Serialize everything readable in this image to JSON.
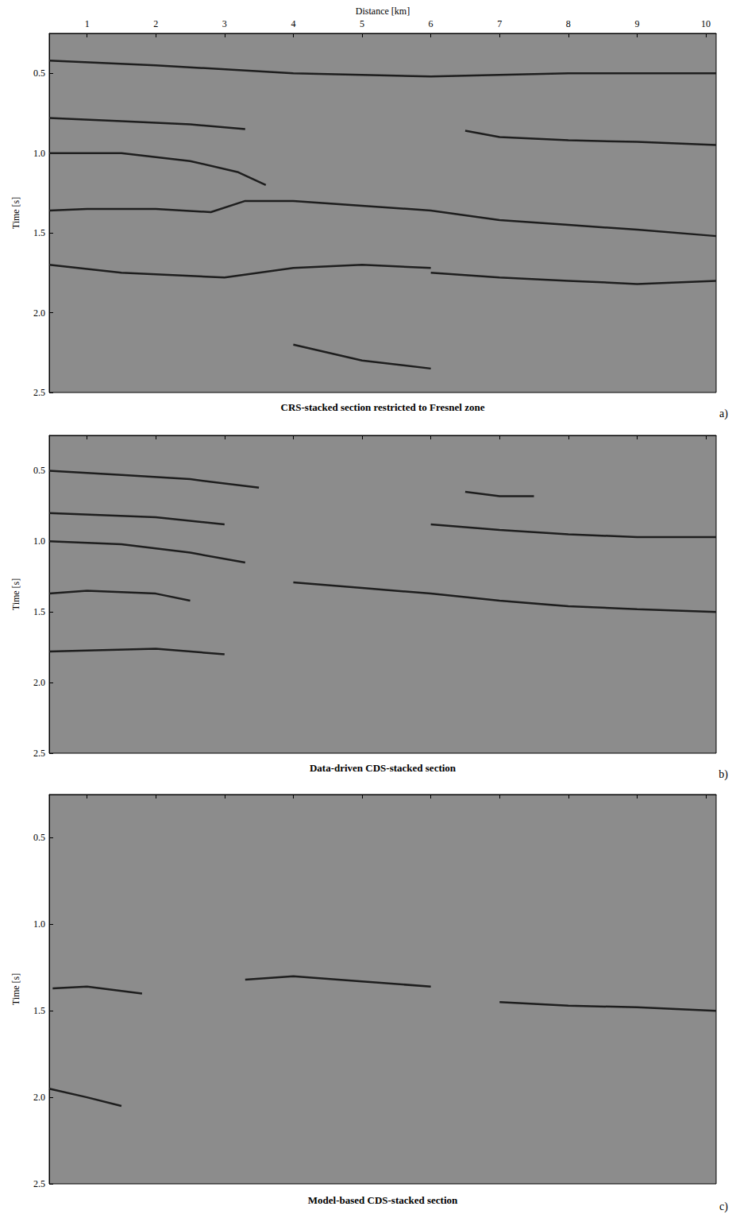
{
  "chart_data": [
    {
      "type": "line",
      "title": "CRS-stacked section restricted to Fresnel zone",
      "panel_label": "a)",
      "xlabel": "Distance [km]",
      "ylabel": "Time [s]",
      "xlim": [
        0.45,
        10.15
      ],
      "xticks": [
        1,
        2,
        3,
        4,
        5,
        6,
        7,
        8,
        9,
        10
      ],
      "ylim": [
        0.25,
        2.5
      ],
      "yticks": [
        0.5,
        {
          "value": 1,
          "label": "1.0"
        },
        1.5,
        {
          "value": 2,
          "label": "2.0"
        },
        2.5
      ],
      "tick_labels": true,
      "color": "#1e1e1e",
      "line_style": "solid",
      "series": [
        {
          "x": [
            0.45,
            2,
            4,
            6,
            8,
            10.15
          ],
          "values": [
            0.42,
            0.45,
            0.5,
            0.52,
            0.5,
            0.5
          ]
        },
        {
          "x": [
            0.45,
            1.5,
            2.5,
            3.3
          ],
          "values": [
            0.78,
            0.8,
            0.82,
            0.85
          ]
        },
        {
          "x": [
            6.5,
            7,
            8,
            9,
            10.15
          ],
          "values": [
            0.86,
            0.9,
            0.92,
            0.93,
            0.95
          ]
        },
        {
          "x": [
            0.45,
            1.5,
            2.5,
            3.2,
            3.6
          ],
          "values": [
            1.0,
            1.0,
            1.05,
            1.12,
            1.2
          ]
        },
        {
          "x": [
            0.45,
            1,
            2,
            2.8,
            3.3,
            4,
            5,
            6,
            7,
            8,
            9,
            10.15
          ],
          "values": [
            1.36,
            1.35,
            1.35,
            1.37,
            1.3,
            1.3,
            1.33,
            1.36,
            1.42,
            1.45,
            1.48,
            1.52
          ]
        },
        {
          "x": [
            0.45,
            1.5,
            3,
            4,
            5,
            6
          ],
          "values": [
            1.7,
            1.75,
            1.78,
            1.72,
            1.7,
            1.72
          ]
        },
        {
          "x": [
            6,
            7,
            8,
            9,
            10.15
          ],
          "values": [
            1.75,
            1.78,
            1.8,
            1.82,
            1.8
          ]
        },
        {
          "x": [
            4,
            5,
            6
          ],
          "values": [
            2.2,
            2.3,
            2.35
          ]
        }
      ]
    },
    {
      "type": "line",
      "title": "Data-driven CDS-stacked section",
      "panel_label": "b)",
      "ylabel": "Time [s]",
      "xlim": [
        0.45,
        10.15
      ],
      "xticks": [
        1,
        2,
        3,
        4,
        5,
        6,
        7,
        8,
        9,
        10
      ],
      "ylim": [
        0.25,
        2.5
      ],
      "yticks": [
        0.5,
        {
          "value": 1,
          "label": "1.0"
        },
        1.5,
        {
          "value": 2,
          "label": "2.0"
        },
        2.5
      ],
      "tick_labels": "y",
      "color": "#1e1e1e",
      "line_style": "solid",
      "series": [
        {
          "x": [
            0.45,
            1.5,
            2.5,
            3.5
          ],
          "values": [
            0.5,
            0.53,
            0.56,
            0.62
          ]
        },
        {
          "x": [
            6.5,
            7,
            7.5
          ],
          "values": [
            0.65,
            0.68,
            0.68
          ]
        },
        {
          "x": [
            0.45,
            2,
            3
          ],
          "values": [
            0.8,
            0.83,
            0.88
          ]
        },
        {
          "x": [
            6,
            7,
            8,
            9,
            10.15
          ],
          "values": [
            0.88,
            0.92,
            0.95,
            0.97,
            0.97
          ]
        },
        {
          "x": [
            0.45,
            1.5,
            2.5,
            3.3
          ],
          "values": [
            1.0,
            1.02,
            1.08,
            1.15
          ]
        },
        {
          "x": [
            0.45,
            1,
            2,
            2.5
          ],
          "values": [
            1.37,
            1.35,
            1.37,
            1.42
          ]
        },
        {
          "x": [
            4,
            5,
            6,
            7,
            8,
            9,
            10.15
          ],
          "values": [
            1.29,
            1.33,
            1.37,
            1.42,
            1.46,
            1.48,
            1.5
          ]
        },
        {
          "x": [
            0.45,
            2,
            3
          ],
          "values": [
            1.78,
            1.76,
            1.8
          ]
        }
      ]
    },
    {
      "type": "line",
      "title": "Model-based CDS-stacked section",
      "panel_label": "c)",
      "ylabel": "Time [s]",
      "xlim": [
        0.45,
        10.15
      ],
      "xticks": [
        1,
        2,
        3,
        4,
        5,
        6,
        7,
        8,
        9,
        10
      ],
      "ylim": [
        0.25,
        2.5
      ],
      "yticks": [
        0.5,
        {
          "value": 1,
          "label": "1.0"
        },
        1.5,
        {
          "value": 2,
          "label": "2.0"
        },
        2.5
      ],
      "tick_labels": "y",
      "color": "#1e1e1e",
      "line_style": "solid",
      "series": [
        {
          "x": [
            3.3,
            4,
            5,
            6
          ],
          "values": [
            1.32,
            1.3,
            1.33,
            1.36
          ]
        },
        {
          "x": [
            0.5,
            1,
            1.8
          ],
          "values": [
            1.37,
            1.36,
            1.4
          ]
        },
        {
          "x": [
            7,
            8,
            9,
            10.15
          ],
          "values": [
            1.45,
            1.47,
            1.48,
            1.5
          ]
        },
        {
          "x": [
            0.45,
            1,
            1.5
          ],
          "values": [
            1.95,
            2.0,
            2.05
          ]
        }
      ]
    }
  ]
}
